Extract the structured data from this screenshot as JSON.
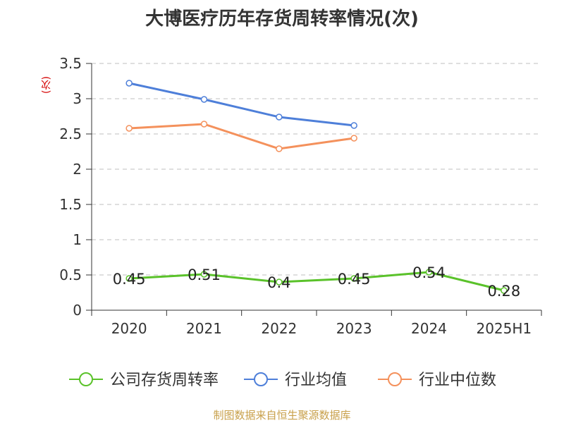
{
  "chart_data": {
    "type": "line",
    "title": "大博医疗历年存货周转率情况(次)",
    "ylabel": "(次)",
    "xlabel": "",
    "categories": [
      "2020",
      "2021",
      "2022",
      "2023",
      "2024",
      "2025H1"
    ],
    "ylim": [
      0,
      3.5
    ],
    "yticks": [
      "0",
      "0.5",
      "1",
      "1.5",
      "2",
      "2.5",
      "3",
      "3.5"
    ],
    "grid": true,
    "legend_position": "bottom",
    "series": [
      {
        "name": "公司存货周转率",
        "color": "#5ac22a",
        "values": [
          0.45,
          0.51,
          0.4,
          0.45,
          0.54,
          0.28
        ],
        "labels": [
          "0.45",
          "0.51",
          "0.4",
          "0.45",
          "0.54",
          "0.28"
        ]
      },
      {
        "name": "行业均值",
        "color": "#4e7fd9",
        "values": [
          3.22,
          2.99,
          2.74,
          2.62,
          null,
          null
        ]
      },
      {
        "name": "行业中位数",
        "color": "#f4915c",
        "values": [
          2.58,
          2.64,
          2.29,
          2.44,
          null,
          null
        ]
      }
    ]
  },
  "source": "制图数据来自恒生聚源数据库"
}
